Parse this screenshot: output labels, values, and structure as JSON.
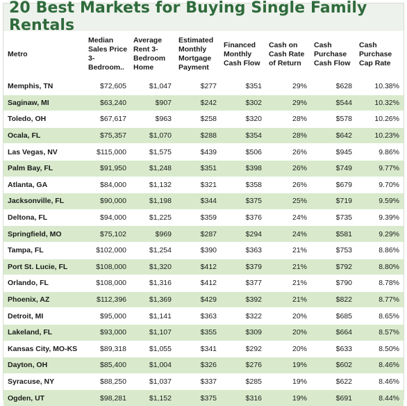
{
  "title": "20 Best Markets for Buying Single Family Rentals",
  "columns": [
    "Metro",
    "Median Sales Price 3-Bedroom..",
    "Average Rent 3-Bedroom Home",
    "Estimated Monthly Mortgage Payment",
    "Financed Monthly Cash Flow",
    "Cash on Cash Rate of Return",
    "Cash Purchase Cash Flow",
    "Cash Purchase Cap Rate"
  ],
  "rows": [
    [
      "Memphis, TN",
      "$72,605",
      "$1,047",
      "$277",
      "$351",
      "29%",
      "$628",
      "10.38%"
    ],
    [
      "Saginaw, MI",
      "$63,240",
      "$907",
      "$242",
      "$302",
      "29%",
      "$544",
      "10.32%"
    ],
    [
      "Toledo, OH",
      "$67,617",
      "$963",
      "$258",
      "$320",
      "28%",
      "$578",
      "10.26%"
    ],
    [
      "Ocala, FL",
      "$75,357",
      "$1,070",
      "$288",
      "$354",
      "28%",
      "$642",
      "10.23%"
    ],
    [
      "Las Vegas, NV",
      "$115,000",
      "$1,575",
      "$439",
      "$506",
      "26%",
      "$945",
      "9.86%"
    ],
    [
      "Palm Bay, FL",
      "$91,950",
      "$1,248",
      "$351",
      "$398",
      "26%",
      "$749",
      "9.77%"
    ],
    [
      "Atlanta, GA",
      "$84,000",
      "$1,132",
      "$321",
      "$358",
      "26%",
      "$679",
      "9.70%"
    ],
    [
      "Jacksonville, FL",
      "$90,000",
      "$1,198",
      "$344",
      "$375",
      "25%",
      "$719",
      "9.59%"
    ],
    [
      "Deltona, FL",
      "$94,000",
      "$1,225",
      "$359",
      "$376",
      "24%",
      "$735",
      "9.39%"
    ],
    [
      "Springfield, MO",
      "$75,102",
      "$969",
      "$287",
      "$294",
      "24%",
      "$581",
      "9.29%"
    ],
    [
      "Tampa, FL",
      "$102,000",
      "$1,254",
      "$390",
      "$363",
      "21%",
      "$753",
      "8.86%"
    ],
    [
      "Port St. Lucie, FL",
      "$108,000",
      "$1,320",
      "$412",
      "$379",
      "21%",
      "$792",
      "8.80%"
    ],
    [
      "Orlando, FL",
      "$108,000",
      "$1,316",
      "$412",
      "$377",
      "21%",
      "$790",
      "8.78%"
    ],
    [
      "Phoenix, AZ",
      "$112,396",
      "$1,369",
      "$429",
      "$392",
      "21%",
      "$822",
      "8.77%"
    ],
    [
      "Detroit, MI",
      "$95,000",
      "$1,141",
      "$363",
      "$322",
      "20%",
      "$685",
      "8.65%"
    ],
    [
      "Lakeland, FL",
      "$93,000",
      "$1,107",
      "$355",
      "$309",
      "20%",
      "$664",
      "8.57%"
    ],
    [
      "Kansas City, MO-KS",
      "$89,318",
      "$1,055",
      "$341",
      "$292",
      "20%",
      "$633",
      "8.50%"
    ],
    [
      "Dayton, OH",
      "$85,400",
      "$1,004",
      "$326",
      "$276",
      "19%",
      "$602",
      "8.46%"
    ],
    [
      "Syracuse, NY",
      "$88,250",
      "$1,037",
      "$337",
      "$285",
      "19%",
      "$622",
      "8.46%"
    ],
    [
      "Ogden, UT",
      "$98,281",
      "$1,152",
      "$375",
      "$316",
      "19%",
      "$691",
      "8.44%"
    ]
  ]
}
